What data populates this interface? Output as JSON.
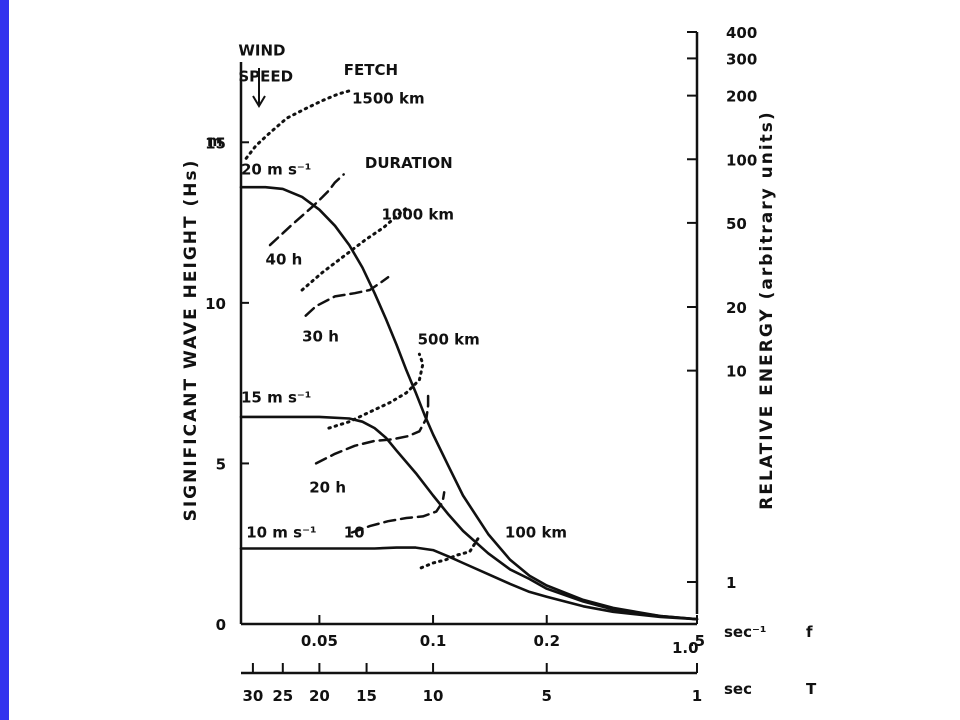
{
  "colors": {
    "left_bar": "#3333ee",
    "ink": "#111111"
  },
  "chart_data": {
    "type": "line",
    "ylabel": "SIGNIFICANT WAVE HEIGHT (Hs)",
    "ylabel_right": "RELATIVE ENERGY (arbitrary units)",
    "y_unit": "m",
    "ylim": [
      0,
      17.5
    ],
    "y_ticks": [
      {
        "value": 0,
        "label": "0"
      },
      {
        "value": 5,
        "label": "5"
      },
      {
        "value": 10,
        "label": "10"
      },
      {
        "value": 15,
        "label": "15"
      }
    ],
    "x_scale": "log",
    "xlim": [
      0.031,
      0.5
    ],
    "x_ticks": [
      {
        "value": 0.05,
        "label": "0.05"
      },
      {
        "value": 0.1,
        "label": "0.1"
      },
      {
        "value": 0.2,
        "label": "0.2"
      },
      {
        "value": 0.5,
        "label": ".5"
      }
    ],
    "x_extra_label": "1.0",
    "x_unit_label": "sec⁻¹",
    "x_var_label": "f",
    "period_axis": {
      "ticks": [
        {
          "value": 30,
          "label": "30"
        },
        {
          "value": 25,
          "label": "25"
        },
        {
          "value": 20,
          "label": "20"
        },
        {
          "value": 15,
          "label": "15"
        },
        {
          "value": 10,
          "label": "10"
        },
        {
          "value": 5,
          "label": "5"
        },
        {
          "value": 1,
          "label": "1"
        }
      ],
      "unit_label": "sec",
      "var_label": "T"
    },
    "right_axis": {
      "ticks": [
        {
          "value": 400,
          "label": "400"
        },
        {
          "value": 300,
          "label": "300"
        },
        {
          "value": 200,
          "label": "200"
        },
        {
          "value": 100,
          "label": "100"
        },
        {
          "value": 50,
          "label": "50"
        },
        {
          "value": 20,
          "label": "20"
        },
        {
          "value": 10,
          "label": "10"
        },
        {
          "value": 1,
          "label": "1"
        }
      ]
    },
    "series": [
      {
        "name": "20 m s⁻¹",
        "style": "solid",
        "x": [
          0.031,
          0.036,
          0.04,
          0.045,
          0.05,
          0.055,
          0.06,
          0.065,
          0.07,
          0.075,
          0.08,
          0.085,
          0.09,
          0.095,
          0.1,
          0.11,
          0.12,
          0.14,
          0.16,
          0.18,
          0.2,
          0.25,
          0.3,
          0.4,
          0.5
        ],
        "y": [
          13.6,
          13.6,
          13.55,
          13.3,
          12.9,
          12.4,
          11.8,
          11.1,
          10.3,
          9.5,
          8.7,
          7.9,
          7.2,
          6.5,
          5.9,
          4.9,
          4.0,
          2.8,
          2.0,
          1.5,
          1.2,
          0.75,
          0.5,
          0.25,
          0.15
        ]
      },
      {
        "name": "15 m s⁻¹",
        "style": "solid",
        "x": [
          0.031,
          0.04,
          0.05,
          0.06,
          0.065,
          0.07,
          0.075,
          0.08,
          0.09,
          0.1,
          0.11,
          0.12,
          0.14,
          0.16,
          0.18,
          0.2,
          0.25,
          0.3,
          0.4,
          0.5
        ],
        "y": [
          6.45,
          6.45,
          6.45,
          6.4,
          6.3,
          6.1,
          5.8,
          5.4,
          4.7,
          4.0,
          3.4,
          2.9,
          2.2,
          1.7,
          1.4,
          1.1,
          0.7,
          0.45,
          0.25,
          0.15
        ]
      },
      {
        "name": "10 m s⁻¹",
        "style": "solid",
        "x": [
          0.031,
          0.05,
          0.07,
          0.08,
          0.09,
          0.1,
          0.11,
          0.12,
          0.14,
          0.16,
          0.18,
          0.2,
          0.25,
          0.3,
          0.4,
          0.5
        ],
        "y": [
          2.35,
          2.35,
          2.35,
          2.38,
          2.38,
          2.3,
          2.1,
          1.9,
          1.55,
          1.25,
          1.0,
          0.85,
          0.55,
          0.38,
          0.22,
          0.15
        ]
      },
      {
        "name": "DURATION",
        "style": "dashed",
        "x": [
          0.037,
          0.042,
          0.048,
          0.051,
          0.053,
          0.055,
          0.058
        ],
        "y": [
          11.8,
          12.4,
          13.0,
          13.3,
          13.5,
          13.75,
          14.0
        ]
      },
      {
        "name": "30 h",
        "style": "dashed",
        "x": [
          0.046,
          0.049,
          0.055,
          0.062,
          0.068,
          0.073,
          0.076
        ],
        "y": [
          9.6,
          9.9,
          10.2,
          10.3,
          10.4,
          10.65,
          10.8
        ]
      },
      {
        "name": "20 h",
        "style": "dashed",
        "x": [
          0.049,
          0.055,
          0.062,
          0.07,
          0.078,
          0.086,
          0.092,
          0.096,
          0.097,
          0.097
        ],
        "y": [
          5.0,
          5.3,
          5.55,
          5.7,
          5.75,
          5.85,
          6.0,
          6.4,
          6.8,
          7.1
        ]
      },
      {
        "name": "10",
        "style": "dashed",
        "x": [
          0.061,
          0.068,
          0.076,
          0.085,
          0.094,
          0.102,
          0.106,
          0.107
        ],
        "y": [
          2.85,
          3.05,
          3.2,
          3.3,
          3.35,
          3.5,
          3.8,
          4.1
        ]
      },
      {
        "name": "1500 km",
        "style": "dotted",
        "x": [
          0.032,
          0.034,
          0.037,
          0.041,
          0.046,
          0.051,
          0.056,
          0.06
        ],
        "y": [
          14.5,
          14.9,
          15.3,
          15.75,
          16.05,
          16.3,
          16.5,
          16.6
        ]
      },
      {
        "name": "1000 km",
        "style": "dotted",
        "x": [
          0.045,
          0.051,
          0.058,
          0.066,
          0.074,
          0.081,
          0.085
        ],
        "y": [
          10.4,
          10.95,
          11.45,
          11.95,
          12.35,
          12.75,
          12.95
        ]
      },
      {
        "name": "500 km",
        "style": "dotted",
        "x": [
          0.053,
          0.06,
          0.068,
          0.077,
          0.085,
          0.092,
          0.094,
          0.092
        ],
        "y": [
          6.1,
          6.3,
          6.6,
          6.9,
          7.2,
          7.6,
          8.1,
          8.4
        ]
      },
      {
        "name": "100 km",
        "style": "dotted",
        "x": [
          0.093,
          0.1,
          0.108,
          0.116,
          0.125,
          0.133
        ],
        "y": [
          1.75,
          1.9,
          2.0,
          2.15,
          2.25,
          2.75
        ]
      }
    ],
    "annotations": [
      {
        "text": "WIND",
        "x": 0.0305,
        "y": 17.7
      },
      {
        "text": "SPEED",
        "x": 0.0305,
        "y": 16.9
      },
      {
        "text": "FETCH",
        "x": 0.058,
        "y": 17.1
      },
      {
        "text": "1500 km",
        "x": 0.061,
        "y": 16.2
      },
      {
        "text": "20 m s⁻¹",
        "x": 0.031,
        "y": 14.0
      },
      {
        "text": "DURATION",
        "x": 0.066,
        "y": 14.2
      },
      {
        "text": "40 h",
        "x": 0.036,
        "y": 11.2
      },
      {
        "text": "1000 km",
        "x": 0.073,
        "y": 12.6
      },
      {
        "text": "30 h",
        "x": 0.045,
        "y": 8.8
      },
      {
        "text": "500 km",
        "x": 0.091,
        "y": 8.7
      },
      {
        "text": "15 m s⁻¹",
        "x": 0.031,
        "y": 6.9
      },
      {
        "text": "20 h",
        "x": 0.047,
        "y": 4.1
      },
      {
        "text": "10 m s⁻¹",
        "x": 0.032,
        "y": 2.7
      },
      {
        "text": "10",
        "x": 0.058,
        "y": 2.7
      },
      {
        "text": "100 km",
        "x": 0.155,
        "y": 2.7
      }
    ]
  }
}
